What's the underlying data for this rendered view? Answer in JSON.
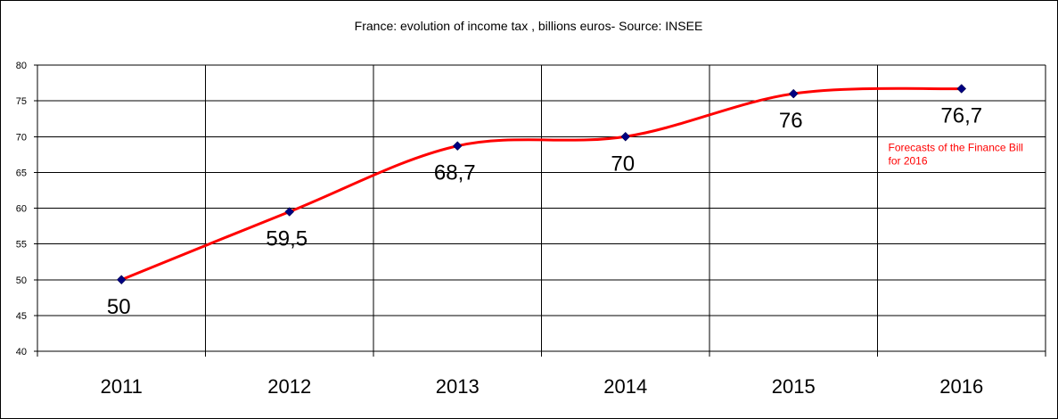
{
  "chart_data": {
    "type": "line",
    "title": "France: evolution of income tax , billions euros- Source: INSEE",
    "categories": [
      "2011",
      "2012",
      "2013",
      "2014",
      "2015",
      "2016"
    ],
    "series": [
      {
        "values": [
          50,
          59.5,
          68.7,
          70,
          76,
          76.7
        ],
        "data_labels": [
          "50",
          "59,5",
          "68,7",
          "70",
          "76",
          "76,7"
        ]
      }
    ],
    "ylim": [
      40,
      80
    ],
    "yticks": [
      40,
      45,
      50,
      55,
      60,
      65,
      70,
      75,
      80
    ],
    "grid": true,
    "smoothed": true,
    "highlighted_point_index": 5,
    "annotation": {
      "lines": [
        "Forecasts of the Finance Bill",
        "for 2016"
      ]
    },
    "colors": {
      "line": "#ff0000",
      "marker": "#000080",
      "highlight_label": "#ff0000",
      "grid": "#000000"
    }
  }
}
